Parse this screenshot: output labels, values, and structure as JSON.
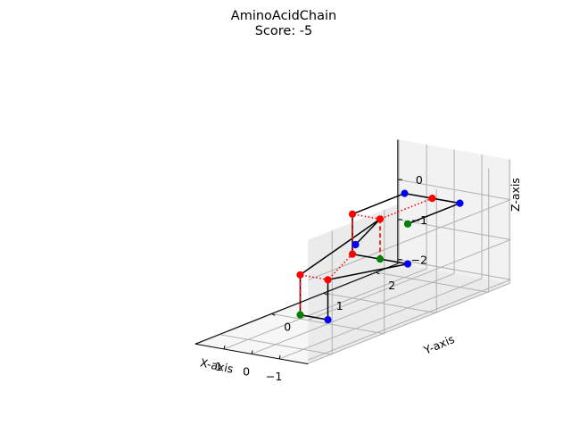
{
  "chart_data": {
    "type": "scatter-3d",
    "title": "AminoAcidChain",
    "subtitle": "Score: -5",
    "xlabel": "X-axis",
    "ylabel": "Y-axis",
    "zlabel": "Z-axis",
    "xticks": [
      "−1",
      "0",
      "1"
    ],
    "yticks": [
      "0",
      "1",
      "2"
    ],
    "zticks": [
      "0",
      "−1",
      "−2"
    ],
    "grid": true,
    "legend": "none",
    "colors": {
      "H": "#ff0000",
      "P": "#0000ff",
      "terminal": "#008000",
      "backbone": "#000000",
      "contact": "#ff0000",
      "pane_left": "#ebebeb",
      "pane_back": "#f2f2f2",
      "pane_floor": "#f7f7f7",
      "grid": "#b0b0b0"
    },
    "residues": [
      {
        "x": -1,
        "y": 1,
        "z": 0,
        "type": "terminal"
      },
      {
        "x": -1,
        "y": 2,
        "z": 0,
        "type": "P"
      },
      {
        "x": 0,
        "y": 2,
        "z": 0,
        "type": "H"
      },
      {
        "x": 1,
        "y": 2,
        "z": 0,
        "type": "P"
      },
      {
        "x": 1,
        "y": 1,
        "z": 0,
        "type": "H"
      },
      {
        "x": 1,
        "y": 1,
        "z": -1,
        "type": "H"
      },
      {
        "x": 0,
        "y": 1,
        "z": -1,
        "type": "terminal"
      },
      {
        "x": -1,
        "y": 1,
        "z": -1,
        "type": "P"
      },
      {
        "x": 0,
        "y": 0,
        "z": -1,
        "type": "H"
      },
      {
        "x": 0,
        "y": 0,
        "z": -2,
        "type": "P"
      },
      {
        "x": 1,
        "y": 0,
        "z": -2,
        "type": "terminal"
      },
      {
        "x": 1,
        "y": 0,
        "z": -1,
        "type": "H"
      },
      {
        "x": 0,
        "y": 1,
        "z": 0,
        "type": "H"
      },
      {
        "x": -1,
        "y": 0,
        "z": 0,
        "type": "P"
      }
    ],
    "contacts": [
      [
        2,
        12
      ],
      [
        12,
        4
      ],
      [
        12,
        6
      ],
      [
        4,
        5
      ],
      [
        5,
        8
      ],
      [
        8,
        11
      ],
      [
        11,
        10
      ]
    ]
  }
}
